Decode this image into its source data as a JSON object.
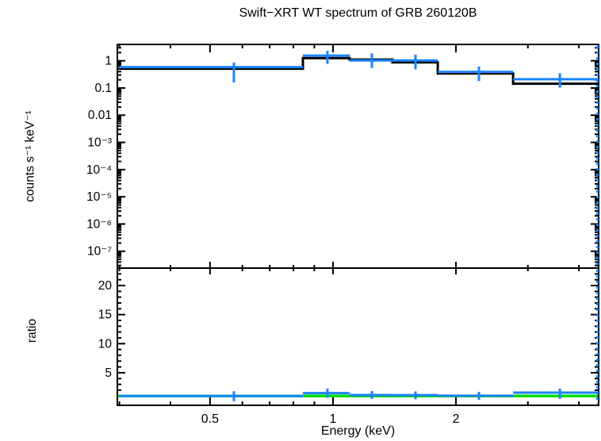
{
  "title": "Swift−XRT WT spectrum of GRB 260120B",
  "axes": {
    "xlabel": "Energy (keV)",
    "ylabel_top": "counts s⁻¹ keV⁻¹",
    "ylabel_bottom": "ratio",
    "x_scale": "log",
    "xlim": [
      0.2965,
      4.47
    ],
    "x_major_ticks": [
      {
        "value": 0.5,
        "label": "0.5"
      },
      {
        "value": 1,
        "label": "1"
      },
      {
        "value": 2,
        "label": "2"
      }
    ],
    "x_minor_ticks": [
      0.3,
      0.4,
      0.6,
      0.7,
      0.8,
      0.9,
      3,
      4
    ],
    "top_y_scale": "log",
    "top_ylim": [
      2.4e-08,
      4.0
    ],
    "top_y_major_ticks": [
      {
        "value": 1,
        "label": "1"
      },
      {
        "value": 0.1,
        "label": "0.1"
      },
      {
        "value": 0.01,
        "label": "0.01"
      },
      {
        "value": 0.001,
        "label": "10⁻³"
      },
      {
        "value": 0.0001,
        "label": "10⁻⁴"
      },
      {
        "value": 1e-05,
        "label": "10⁻⁵"
      },
      {
        "value": 1e-06,
        "label": "10⁻⁶"
      },
      {
        "value": 1e-07,
        "label": "10⁻⁷"
      }
    ],
    "bottom_y_scale": "linear",
    "bottom_ylim": [
      -0.6,
      23.0
    ],
    "bottom_y_major_ticks": [
      {
        "value": 5,
        "label": "5"
      },
      {
        "value": 10,
        "label": "10"
      },
      {
        "value": 15,
        "label": "15"
      },
      {
        "value": 20,
        "label": "20"
      }
    ]
  },
  "colors": {
    "data": "#1b84ff",
    "model": "#000000",
    "ratio_model": "#00dd00",
    "background": "#ffffff"
  },
  "chart_data": [
    {
      "type": "step-spectrum",
      "panel": "top",
      "ylabel": "counts s⁻¹ keV⁻¹",
      "series": [
        {
          "name": "model",
          "style": "step",
          "color": "#000000"
        },
        {
          "name": "data",
          "style": "step-with-errors",
          "color": "#1b84ff"
        }
      ],
      "bins": [
        {
          "e_lo": 0.3,
          "e_hi": 0.844,
          "model": 0.51,
          "data": 0.585,
          "x": 0.572,
          "data_lo": 0.161,
          "data_hi": 0.857
        },
        {
          "e_lo": 0.844,
          "e_hi": 1.098,
          "model": 1.26,
          "data": 1.55,
          "x": 0.969,
          "data_lo": 0.765,
          "data_hi": 2.34
        },
        {
          "e_lo": 1.098,
          "e_hi": 1.398,
          "model": 1.11,
          "data": 1.03,
          "x": 1.245,
          "data_lo": 0.548,
          "data_hi": 1.87
        },
        {
          "e_lo": 1.398,
          "e_hi": 1.805,
          "model": 0.875,
          "data": 1.03,
          "x": 1.592,
          "data_lo": 0.49,
          "data_hi": 1.67
        },
        {
          "e_lo": 1.805,
          "e_hi": 2.76,
          "model": 0.343,
          "data": 0.39,
          "x": 2.277,
          "data_lo": 0.18,
          "data_hi": 0.61
        },
        {
          "e_lo": 2.76,
          "e_hi": 4.47,
          "model": 0.144,
          "data": 0.21,
          "x": 3.593,
          "data_lo": 0.102,
          "data_hi": 0.349
        }
      ],
      "right_edge_dashed_line": true
    },
    {
      "type": "ratio",
      "panel": "bottom",
      "ylabel": "ratio",
      "model_ratio": 1.0,
      "bins": [
        {
          "e_lo": 0.3,
          "e_hi": 0.844,
          "ratio": 1.0,
          "x": 0.572,
          "lo": 0.09,
          "hi": 1.82
        },
        {
          "e_lo": 0.844,
          "e_hi": 1.098,
          "ratio": 1.5,
          "x": 0.969,
          "lo": 0.7,
          "hi": 2.27
        },
        {
          "e_lo": 1.098,
          "e_hi": 1.398,
          "ratio": 1.18,
          "x": 1.245,
          "lo": 0.5,
          "hi": 1.86
        },
        {
          "e_lo": 1.398,
          "e_hi": 1.805,
          "ratio": 1.15,
          "x": 1.592,
          "lo": 0.45,
          "hi": 1.8
        },
        {
          "e_lo": 1.805,
          "e_hi": 2.76,
          "ratio": 1.05,
          "x": 2.277,
          "lo": 0.36,
          "hi": 1.72
        },
        {
          "e_lo": 2.76,
          "e_hi": 4.47,
          "ratio": 1.58,
          "x": 3.593,
          "lo": 0.5,
          "hi": 2.27
        }
      ],
      "right_edge_dashed_line": true
    }
  ]
}
